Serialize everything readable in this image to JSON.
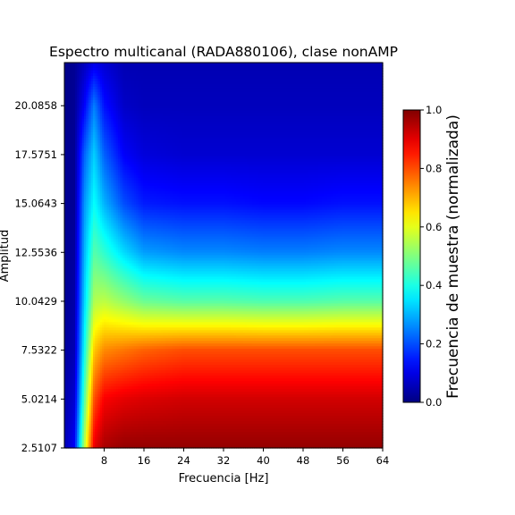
{
  "chart_data": {
    "type": "heatmap",
    "title": "Espectro multicanal (RADA880106), clase nonAMP",
    "xlabel": "Frecuencia [Hz]",
    "ylabel": "Amplitud",
    "xlim": [
      0,
      64
    ],
    "ylim": [
      2.5107,
      22.3
    ],
    "x_ticks": [
      8,
      16,
      24,
      32,
      40,
      48,
      56,
      64
    ],
    "x_tick_labels": [
      "8",
      "16",
      "24",
      "32",
      "40",
      "48",
      "56",
      "64"
    ],
    "y_ticks": [
      2.5107,
      5.0214,
      7.5322,
      10.0429,
      12.5536,
      15.0643,
      17.5751,
      20.0858
    ],
    "y_tick_labels": [
      "2.5107",
      "5.0214",
      "7.5322",
      "10.0429",
      "12.5536",
      "15.0643",
      "17.5751",
      "20.0858"
    ],
    "colormap": "jet",
    "colorbar": {
      "label": "Frecuencia de muestra (normalizada)",
      "range": [
        0,
        1
      ],
      "ticks": [
        0.0,
        0.2,
        0.4,
        0.6,
        0.8,
        1.0
      ],
      "tick_labels": [
        "0.0",
        "0.2",
        "0.4",
        "0.6",
        "0.8",
        "1.0"
      ]
    },
    "series": [
      {
        "x": 0,
        "values": [
          0.05,
          0.04,
          0.03,
          0.02,
          0.02,
          0.02,
          0.02,
          0.01,
          0.01
        ]
      },
      {
        "x": 2,
        "values": [
          0.12,
          0.08,
          0.05,
          0.04,
          0.03,
          0.02,
          0.02,
          0.02,
          0.02
        ]
      },
      {
        "x": 4,
        "values": [
          0.55,
          0.45,
          0.38,
          0.33,
          0.3,
          0.27,
          0.22,
          0.12,
          0.06
        ]
      },
      {
        "x": 6,
        "values": [
          0.9,
          0.8,
          0.68,
          0.55,
          0.46,
          0.38,
          0.33,
          0.25,
          0.1
        ]
      },
      {
        "x": 8,
        "values": [
          0.96,
          0.88,
          0.74,
          0.56,
          0.42,
          0.3,
          0.22,
          0.14,
          0.08
        ]
      },
      {
        "x": 12,
        "values": [
          0.98,
          0.9,
          0.76,
          0.52,
          0.34,
          0.2,
          0.12,
          0.07,
          0.05
        ]
      },
      {
        "x": 16,
        "values": [
          0.98,
          0.91,
          0.78,
          0.48,
          0.28,
          0.15,
          0.09,
          0.06,
          0.05
        ]
      },
      {
        "x": 24,
        "values": [
          0.98,
          0.92,
          0.8,
          0.46,
          0.26,
          0.14,
          0.08,
          0.06,
          0.05
        ]
      },
      {
        "x": 32,
        "values": [
          0.98,
          0.92,
          0.8,
          0.46,
          0.26,
          0.14,
          0.08,
          0.06,
          0.05
        ]
      },
      {
        "x": 40,
        "values": [
          0.98,
          0.92,
          0.8,
          0.45,
          0.25,
          0.13,
          0.08,
          0.06,
          0.05
        ]
      },
      {
        "x": 48,
        "values": [
          0.98,
          0.92,
          0.8,
          0.45,
          0.25,
          0.13,
          0.08,
          0.06,
          0.05
        ]
      },
      {
        "x": 56,
        "values": [
          0.98,
          0.92,
          0.8,
          0.46,
          0.26,
          0.14,
          0.08,
          0.06,
          0.05
        ]
      },
      {
        "x": 64,
        "values": [
          0.98,
          0.92,
          0.8,
          0.46,
          0.26,
          0.14,
          0.08,
          0.06,
          0.05
        ]
      }
    ],
    "series_y": [
      2.5107,
      5.0214,
      7.5322,
      10.0429,
      12.5536,
      15.0643,
      17.5751,
      20.0858,
      22.3
    ]
  }
}
